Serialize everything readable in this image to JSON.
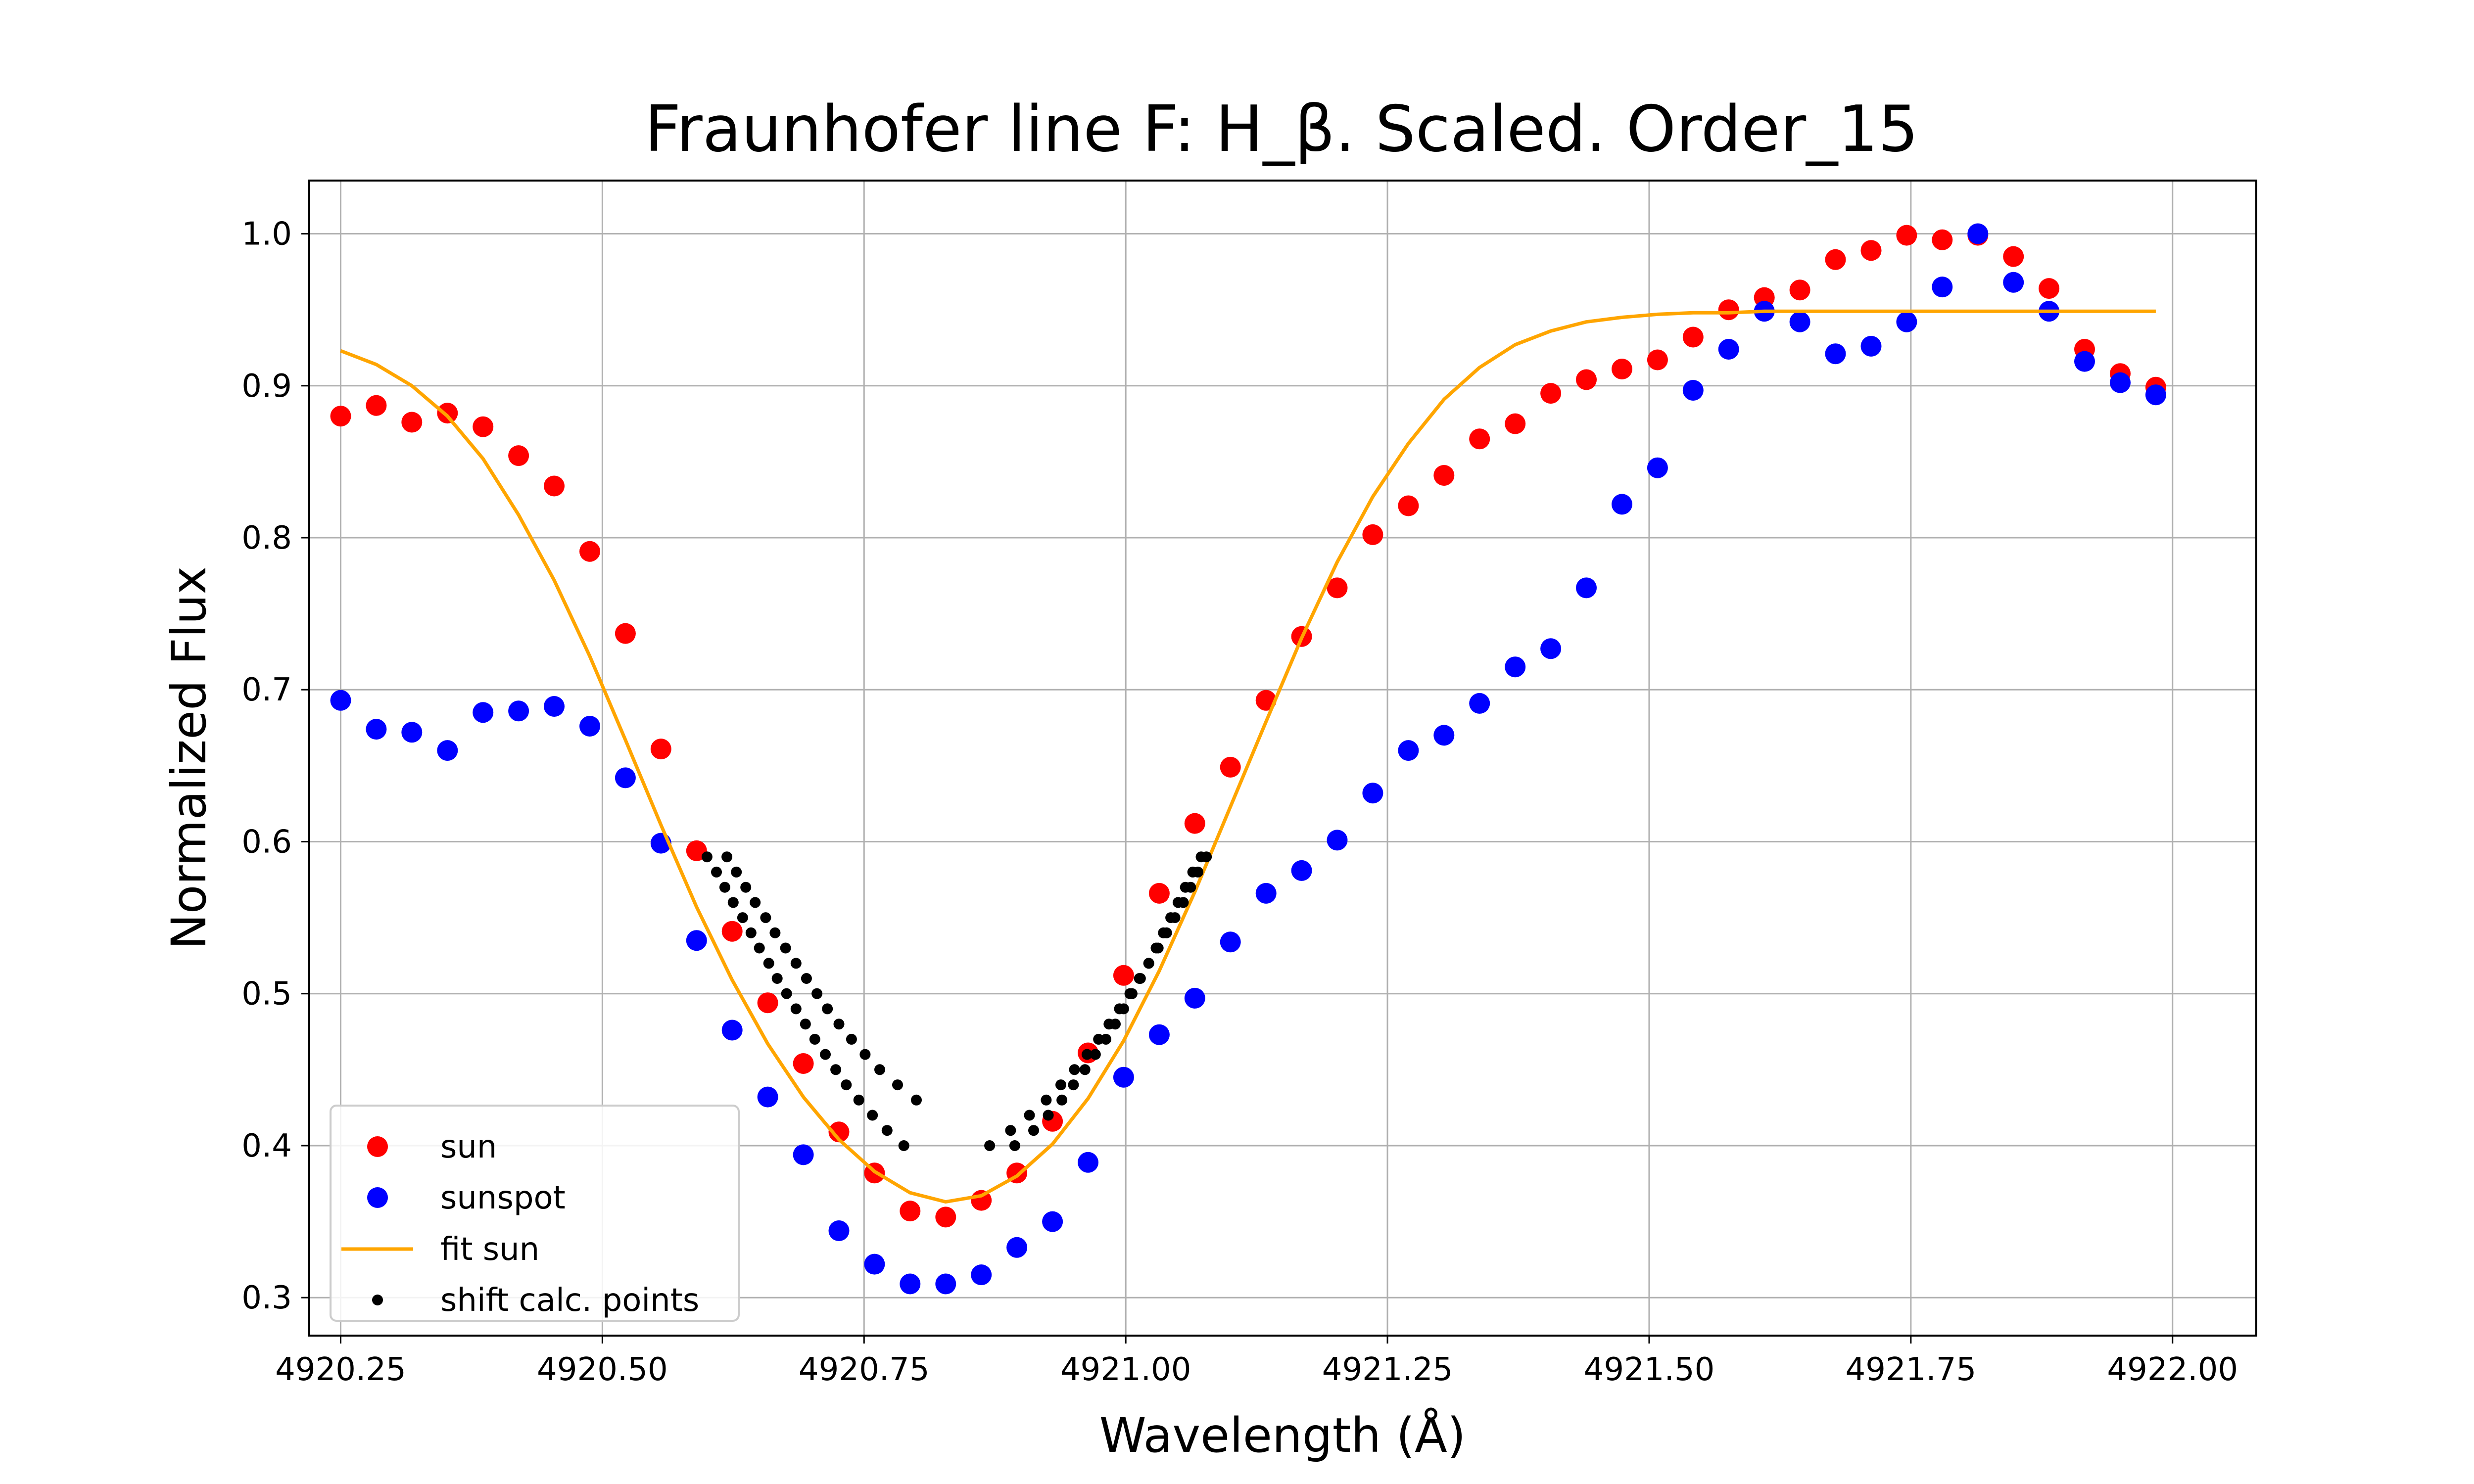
{
  "chart_data": {
    "type": "scatter",
    "title": "Fraunhofer line F: H_β. Scaled. Order_15",
    "xlabel": "Wavelength (Å)",
    "ylabel": "Normalized Flux",
    "xlim": [
      4920.22,
      4922.08
    ],
    "ylim": [
      0.275,
      1.035
    ],
    "xticks": [
      4920.25,
      4920.5,
      4920.75,
      4921.0,
      4921.25,
      4921.5,
      4921.75,
      4922.0
    ],
    "xtick_labels": [
      "4920.25",
      "4920.50",
      "4920.75",
      "4921.00",
      "4921.25",
      "4921.50",
      "4921.75",
      "4922.00"
    ],
    "yticks": [
      0.3,
      0.4,
      0.5,
      0.6,
      0.7,
      0.8,
      0.9,
      1.0
    ],
    "ytick_labels": [
      "0.3",
      "0.4",
      "0.5",
      "0.6",
      "0.7",
      "0.8",
      "0.9",
      "1.0"
    ],
    "grid": true,
    "legend_position": "lower-left",
    "series": [
      {
        "name": "sun",
        "kind": "scatter",
        "color": "#ff0000",
        "x": [
          4920.25,
          4920.284,
          4920.318,
          4920.352,
          4920.386,
          4920.42,
          4920.454,
          4920.488,
          4920.522,
          4920.556,
          4920.59,
          4920.624,
          4920.658,
          4920.692,
          4920.726,
          4920.76,
          4920.794,
          4920.828,
          4920.862,
          4920.896,
          4920.93,
          4920.964,
          4920.998,
          4921.032,
          4921.066,
          4921.1,
          4921.134,
          4921.168,
          4921.202,
          4921.236,
          4921.27,
          4921.304,
          4921.338,
          4921.372,
          4921.406,
          4921.44,
          4921.474,
          4921.508,
          4921.542,
          4921.576,
          4921.61,
          4921.644,
          4921.678,
          4921.712,
          4921.746,
          4921.78,
          4921.814,
          4921.848,
          4921.882,
          4921.916,
          4921.95,
          4921.984
        ],
        "y": [
          0.88,
          0.887,
          0.876,
          0.882,
          0.873,
          0.854,
          0.834,
          0.791,
          0.737,
          0.661,
          0.594,
          0.541,
          0.494,
          0.454,
          0.409,
          0.382,
          0.357,
          0.353,
          0.364,
          0.382,
          0.416,
          0.461,
          0.512,
          0.566,
          0.612,
          0.649,
          0.693,
          0.735,
          0.767,
          0.802,
          0.821,
          0.841,
          0.865,
          0.875,
          0.895,
          0.904,
          0.911,
          0.917,
          0.932,
          0.95,
          0.958,
          0.963,
          0.983,
          0.989,
          0.999,
          0.996,
          0.999,
          0.985,
          0.964,
          0.924,
          0.908,
          0.899
        ]
      },
      {
        "name": "sunspot",
        "kind": "scatter",
        "color": "#0000ff",
        "x": [
          4920.25,
          4920.284,
          4920.318,
          4920.352,
          4920.386,
          4920.42,
          4920.454,
          4920.488,
          4920.522,
          4920.556,
          4920.59,
          4920.624,
          4920.658,
          4920.692,
          4920.726,
          4920.76,
          4920.794,
          4920.828,
          4920.862,
          4920.896,
          4920.93,
          4920.964,
          4920.998,
          4921.032,
          4921.066,
          4921.1,
          4921.134,
          4921.168,
          4921.202,
          4921.236,
          4921.27,
          4921.304,
          4921.338,
          4921.372,
          4921.406,
          4921.44,
          4921.474,
          4921.508,
          4921.542,
          4921.576,
          4921.61,
          4921.644,
          4921.678,
          4921.712,
          4921.746,
          4921.78,
          4921.814,
          4921.848,
          4921.882,
          4921.916,
          4921.95,
          4921.984
        ],
        "y": [
          0.693,
          0.674,
          0.672,
          0.66,
          0.685,
          0.686,
          0.689,
          0.676,
          0.642,
          0.599,
          0.535,
          0.476,
          0.432,
          0.394,
          0.344,
          0.322,
          0.309,
          0.309,
          0.315,
          0.333,
          0.35,
          0.389,
          0.445,
          0.473,
          0.497,
          0.534,
          0.566,
          0.581,
          0.601,
          0.632,
          0.66,
          0.67,
          0.691,
          0.715,
          0.727,
          0.767,
          0.822,
          0.846,
          0.897,
          0.924,
          0.949,
          0.942,
          0.921,
          0.926,
          0.942,
          0.965,
          1.0,
          0.968,
          0.949,
          0.916,
          0.902,
          0.894
        ]
      },
      {
        "name": "fit sun",
        "kind": "line",
        "color": "#ffa500",
        "x": [
          4920.25,
          4920.284,
          4920.318,
          4920.352,
          4920.386,
          4920.42,
          4920.454,
          4920.488,
          4920.522,
          4920.556,
          4920.59,
          4920.624,
          4920.658,
          4920.692,
          4920.726,
          4920.76,
          4920.794,
          4920.828,
          4920.862,
          4920.896,
          4920.93,
          4920.964,
          4920.998,
          4921.032,
          4921.066,
          4921.1,
          4921.134,
          4921.168,
          4921.202,
          4921.236,
          4921.27,
          4921.304,
          4921.338,
          4921.372,
          4921.406,
          4921.44,
          4921.474,
          4921.508,
          4921.542,
          4921.576,
          4921.61,
          4921.644,
          4921.678,
          4921.712,
          4921.746,
          4921.78,
          4921.814,
          4921.848,
          4921.882,
          4921.916,
          4921.95,
          4921.984
        ],
        "y": [
          0.923,
          0.914,
          0.9,
          0.88,
          0.852,
          0.815,
          0.772,
          0.722,
          0.667,
          0.611,
          0.557,
          0.509,
          0.467,
          0.432,
          0.404,
          0.383,
          0.369,
          0.363,
          0.367,
          0.38,
          0.401,
          0.431,
          0.469,
          0.515,
          0.567,
          0.623,
          0.679,
          0.734,
          0.784,
          0.827,
          0.862,
          0.891,
          0.912,
          0.927,
          0.936,
          0.942,
          0.945,
          0.947,
          0.948,
          0.948,
          0.949,
          0.949,
          0.949,
          0.949,
          0.949,
          0.949,
          0.949,
          0.949,
          0.949,
          0.949,
          0.949,
          0.949
        ]
      },
      {
        "name": "shift calc. points",
        "kind": "scatter",
        "color": "#000000",
        "x": [
          4920.6,
          4920.609,
          4920.617,
          4920.625,
          4920.634,
          4920.642,
          4920.65,
          4920.659,
          4920.667,
          4920.676,
          4920.685,
          4920.694,
          4920.703,
          4920.713,
          4920.723,
          4920.733,
          4920.745,
          4920.758,
          4920.772,
          4920.788,
          4921.072,
          4921.064,
          4921.057,
          4921.05,
          4921.043,
          4921.036,
          4921.029,
          4921.022,
          4921.014,
          4921.006,
          4920.998,
          4920.99,
          4920.981,
          4920.971,
          4920.961,
          4920.95,
          4920.939,
          4920.926,
          4920.912,
          4920.894,
          4920.619,
          4920.628,
          4920.637,
          4920.646,
          4920.656,
          4920.665,
          4920.675,
          4920.685,
          4920.695,
          4920.705,
          4920.715,
          4920.726,
          4920.738,
          4920.751,
          4920.765,
          4920.782,
          4920.8,
          4921.077,
          4921.069,
          4921.062,
          4921.055,
          4921.047,
          4921.039,
          4921.031,
          4921.022,
          4921.013,
          4921.004,
          4920.994,
          4920.984,
          4920.974,
          4920.963,
          4920.951,
          4920.938,
          4920.924,
          4920.908,
          4920.89,
          4920.87
        ],
        "y": [
          0.59,
          0.58,
          0.57,
          0.56,
          0.55,
          0.54,
          0.53,
          0.52,
          0.51,
          0.5,
          0.49,
          0.48,
          0.47,
          0.46,
          0.45,
          0.44,
          0.43,
          0.42,
          0.41,
          0.4,
          0.59,
          0.58,
          0.57,
          0.56,
          0.55,
          0.54,
          0.53,
          0.52,
          0.51,
          0.5,
          0.49,
          0.48,
          0.47,
          0.46,
          0.45,
          0.44,
          0.43,
          0.42,
          0.41,
          0.4,
          0.59,
          0.58,
          0.57,
          0.56,
          0.55,
          0.54,
          0.53,
          0.52,
          0.51,
          0.5,
          0.49,
          0.48,
          0.47,
          0.46,
          0.45,
          0.44,
          0.43,
          0.59,
          0.58,
          0.57,
          0.56,
          0.55,
          0.54,
          0.53,
          0.52,
          0.51,
          0.5,
          0.49,
          0.48,
          0.47,
          0.46,
          0.45,
          0.44,
          0.43,
          0.42,
          0.41,
          0.4
        ]
      }
    ]
  }
}
